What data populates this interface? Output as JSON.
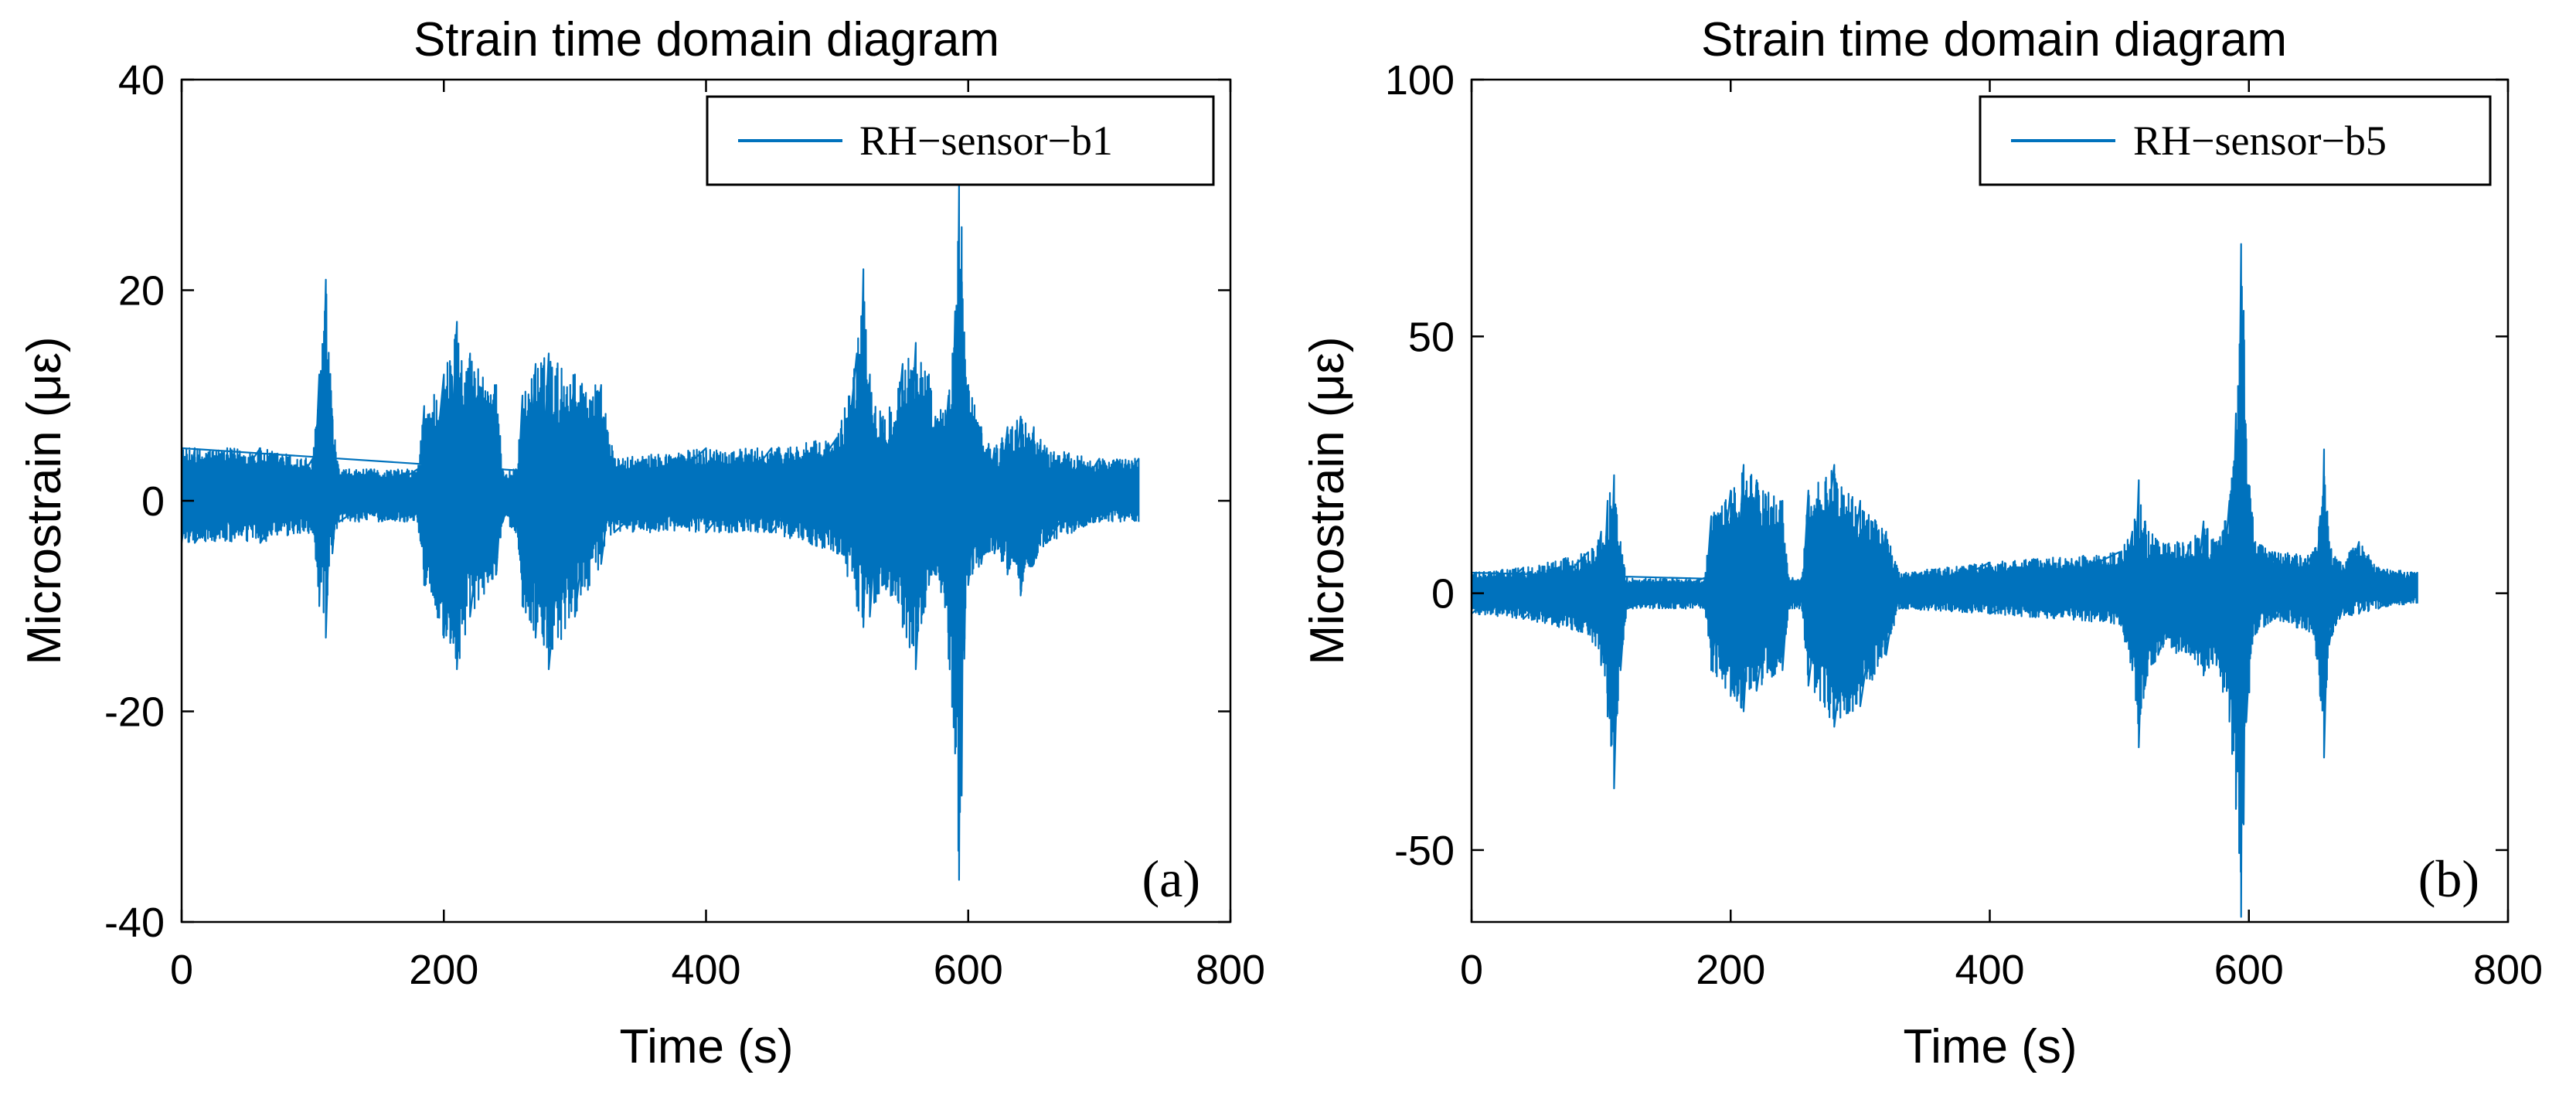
{
  "chart_data": [
    {
      "type": "line",
      "title": "Strain time domain diagram",
      "xlabel": "Time (s)",
      "ylabel": "Microstrain (με)",
      "xlim": [
        0,
        800
      ],
      "ylim": [
        -40,
        40
      ],
      "xticks": [
        0,
        200,
        400,
        600,
        800
      ],
      "yticks": [
        -40,
        -20,
        0,
        20,
        40
      ],
      "xtick_labels": [
        "0",
        "200",
        "400",
        "600",
        "800"
      ],
      "ytick_labels": [
        "-40",
        "-20",
        "0",
        "20",
        "40"
      ],
      "legend_position": "top-right",
      "panel_label": "(a)",
      "series": [
        {
          "name": "RH−sensor−b1",
          "color": "#0072BD",
          "envelope": {
            "t": [
              0,
              10,
              60,
              100,
              105,
              110,
              115,
              120,
              180,
              185,
              200,
              210,
              220,
              240,
              245,
              255,
              260,
              270,
              280,
              300,
              320,
              330,
              400,
              450,
              500,
              515,
              520,
              525,
              535,
              550,
              560,
              570,
              575,
              585,
              590,
              593,
              595,
              597,
              600,
              610,
              620,
              630,
              640,
              650,
              660,
              700,
              730
            ],
            "upper": [
              5,
              5,
              5,
              4,
              12,
              21,
              8,
              3,
              3,
              9,
              12,
              17,
              14,
              11,
              3,
              3,
              10,
              13,
              14,
              12,
              11,
              4,
              5,
              5,
              6,
              14,
              22,
              12,
              8,
              13,
              15,
              12,
              8,
              10,
              18,
              30,
              26,
              16,
              11,
              7,
              5,
              7,
              8,
              7,
              5,
              4,
              4
            ],
            "lower": [
              -4,
              -4,
              -4,
              -3,
              -10,
              -13,
              -5,
              -2,
              -2,
              -8,
              -13,
              -16,
              -11,
              -7,
              -2,
              -3,
              -10,
              -13,
              -16,
              -11,
              -6,
              -3,
              -3,
              -3,
              -5,
              -10,
              -12,
              -11,
              -8,
              -12,
              -16,
              -8,
              -7,
              -15,
              -24,
              -36,
              -28,
              -15,
              -8,
              -6,
              -5,
              -7,
              -9,
              -6,
              -4,
              -2,
              -2
            ]
          }
        }
      ]
    },
    {
      "type": "line",
      "title": "Strain time domain diagram",
      "xlabel": "Time (s)",
      "ylabel": "Microstrain (με)",
      "xlim": [
        0,
        800
      ],
      "ylim": [
        -64,
        100
      ],
      "xticks": [
        0,
        200,
        400,
        600,
        800
      ],
      "yticks": [
        -50,
        0,
        50,
        100
      ],
      "xtick_labels": [
        "0",
        "200",
        "400",
        "600",
        "800"
      ],
      "ytick_labels": [
        "-50",
        "0",
        "50",
        "100"
      ],
      "legend_position": "top-right",
      "panel_label": "(b)",
      "series": [
        {
          "name": "RH−sensor−b5",
          "color": "#0072BD",
          "envelope": {
            "t": [
              0,
              40,
              90,
              100,
              105,
              110,
              115,
              120,
              180,
              185,
              200,
              210,
              220,
              240,
              245,
              255,
              260,
              280,
              300,
              320,
              330,
              400,
              500,
              510,
              515,
              520,
              530,
              555,
              565,
              575,
              585,
              590,
              594,
              596,
              598,
              605,
              620,
              650,
              655,
              658,
              662,
              670,
              685,
              700,
              730
            ],
            "upper": [
              4,
              5,
              8,
              12,
              18,
              23,
              10,
              3,
              3,
              15,
              20,
              25,
              22,
              18,
              3,
              3,
              20,
              25,
              18,
              12,
              4,
              6,
              8,
              12,
              22,
              14,
              10,
              10,
              14,
              10,
              18,
              35,
              68,
              55,
              30,
              10,
              8,
              8,
              15,
              28,
              10,
              6,
              10,
              5,
              4
            ],
            "lower": [
              -4,
              -5,
              -8,
              -14,
              -24,
              -38,
              -15,
              -3,
              -3,
              -15,
              -20,
              -23,
              -19,
              -15,
              -3,
              -3,
              -18,
              -26,
              -22,
              -12,
              -3,
              -4,
              -6,
              -15,
              -30,
              -18,
              -12,
              -12,
              -16,
              -14,
              -25,
              -42,
              -63,
              -45,
              -25,
              -8,
              -5,
              -8,
              -20,
              -32,
              -10,
              -5,
              -4,
              -3,
              -2
            ]
          }
        }
      ]
    }
  ]
}
